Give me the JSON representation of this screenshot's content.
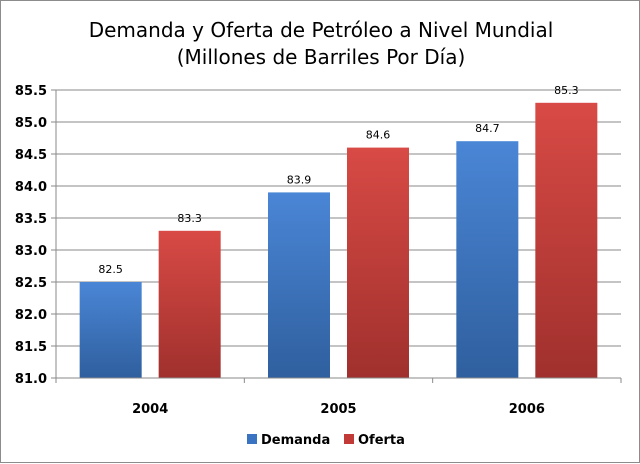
{
  "chart_data": {
    "type": "bar",
    "title_lines": [
      "Demanda y Oferta de Petróleo a Nivel Mundial",
      "(Millones de Barriles Por Día)"
    ],
    "xlabel": "",
    "ylabel": "",
    "categories": [
      "2004",
      "2005",
      "2006"
    ],
    "series": [
      {
        "name": "Demanda",
        "values": [
          82.5,
          83.9,
          84.7
        ],
        "color": "#3b73c3"
      },
      {
        "name": "Oferta",
        "values": [
          83.3,
          84.6,
          85.3
        ],
        "color": "#c23a37"
      }
    ],
    "data_labels": [
      [
        "82.5",
        "83.9",
        "84.7"
      ],
      [
        "83.3",
        "84.6",
        "85.3"
      ]
    ],
    "ylim": [
      81.0,
      85.5
    ],
    "yticks": [
      "81.0",
      "81.5",
      "82.0",
      "82.5",
      "83.0",
      "83.5",
      "84.0",
      "84.5",
      "85.0",
      "85.5"
    ],
    "grid": true,
    "legend_position": "bottom"
  }
}
